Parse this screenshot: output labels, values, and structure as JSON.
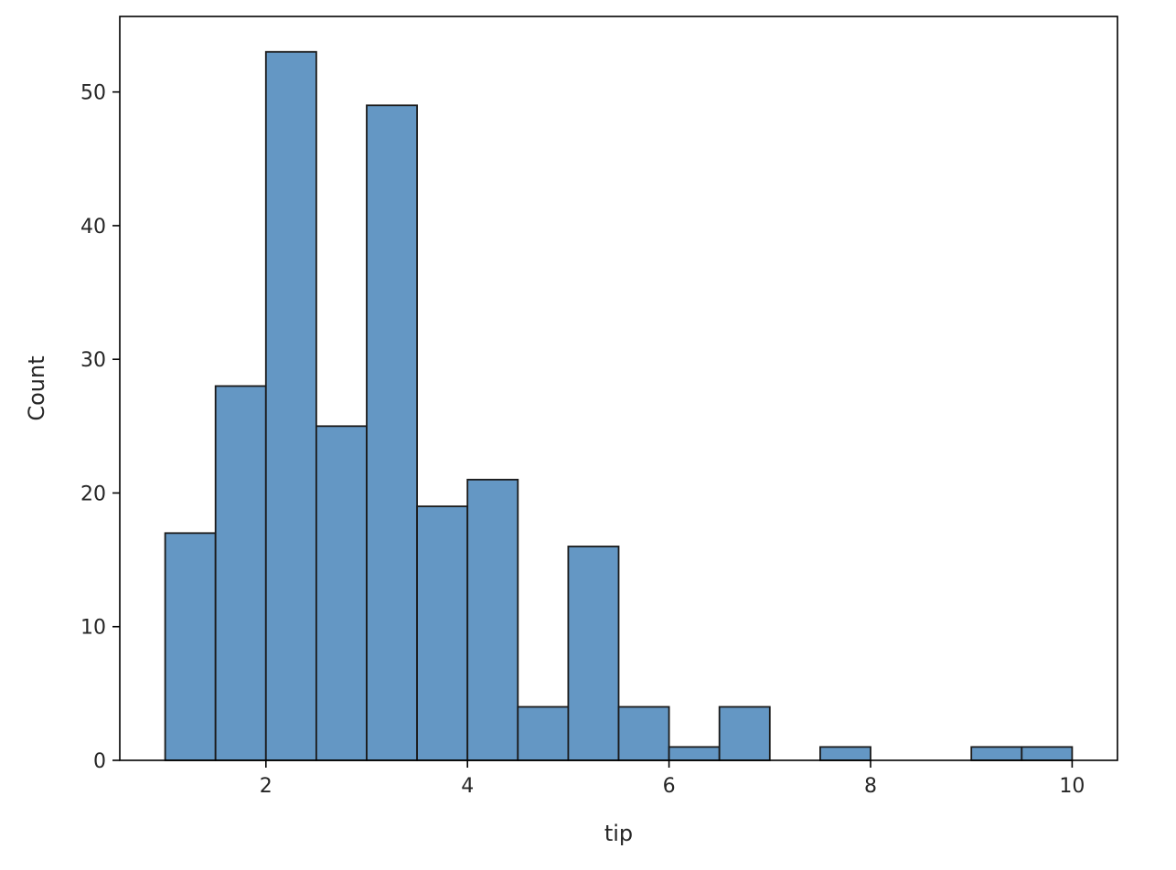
{
  "chart_data": {
    "type": "bar",
    "title": "",
    "xlabel": "tip",
    "ylabel": "Count",
    "xlim": [
      0.55,
      10.45
    ],
    "ylim": [
      0,
      55.65
    ],
    "xticks": [
      2,
      4,
      6,
      8,
      10
    ],
    "yticks": [
      0,
      10,
      20,
      30,
      40,
      50
    ],
    "grid": false,
    "bar_color": "#6497c4",
    "edge_color": "#1a1a1a",
    "bins": [
      {
        "x0": 1.0,
        "x1": 1.5,
        "count": 17
      },
      {
        "x0": 1.5,
        "x1": 2.0,
        "count": 28
      },
      {
        "x0": 2.0,
        "x1": 2.5,
        "count": 53
      },
      {
        "x0": 2.5,
        "x1": 3.0,
        "count": 25
      },
      {
        "x0": 3.0,
        "x1": 3.5,
        "count": 49
      },
      {
        "x0": 3.5,
        "x1": 4.0,
        "count": 19
      },
      {
        "x0": 4.0,
        "x1": 4.5,
        "count": 21
      },
      {
        "x0": 4.5,
        "x1": 5.0,
        "count": 4
      },
      {
        "x0": 5.0,
        "x1": 5.5,
        "count": 16
      },
      {
        "x0": 5.5,
        "x1": 6.0,
        "count": 4
      },
      {
        "x0": 6.0,
        "x1": 6.5,
        "count": 1
      },
      {
        "x0": 6.5,
        "x1": 7.0,
        "count": 4
      },
      {
        "x0": 7.0,
        "x1": 7.5,
        "count": 0
      },
      {
        "x0": 7.5,
        "x1": 8.0,
        "count": 1
      },
      {
        "x0": 8.0,
        "x1": 8.5,
        "count": 0
      },
      {
        "x0": 8.5,
        "x1": 9.0,
        "count": 0
      },
      {
        "x0": 9.0,
        "x1": 9.5,
        "count": 1
      },
      {
        "x0": 9.5,
        "x1": 10.0,
        "count": 1
      }
    ]
  }
}
